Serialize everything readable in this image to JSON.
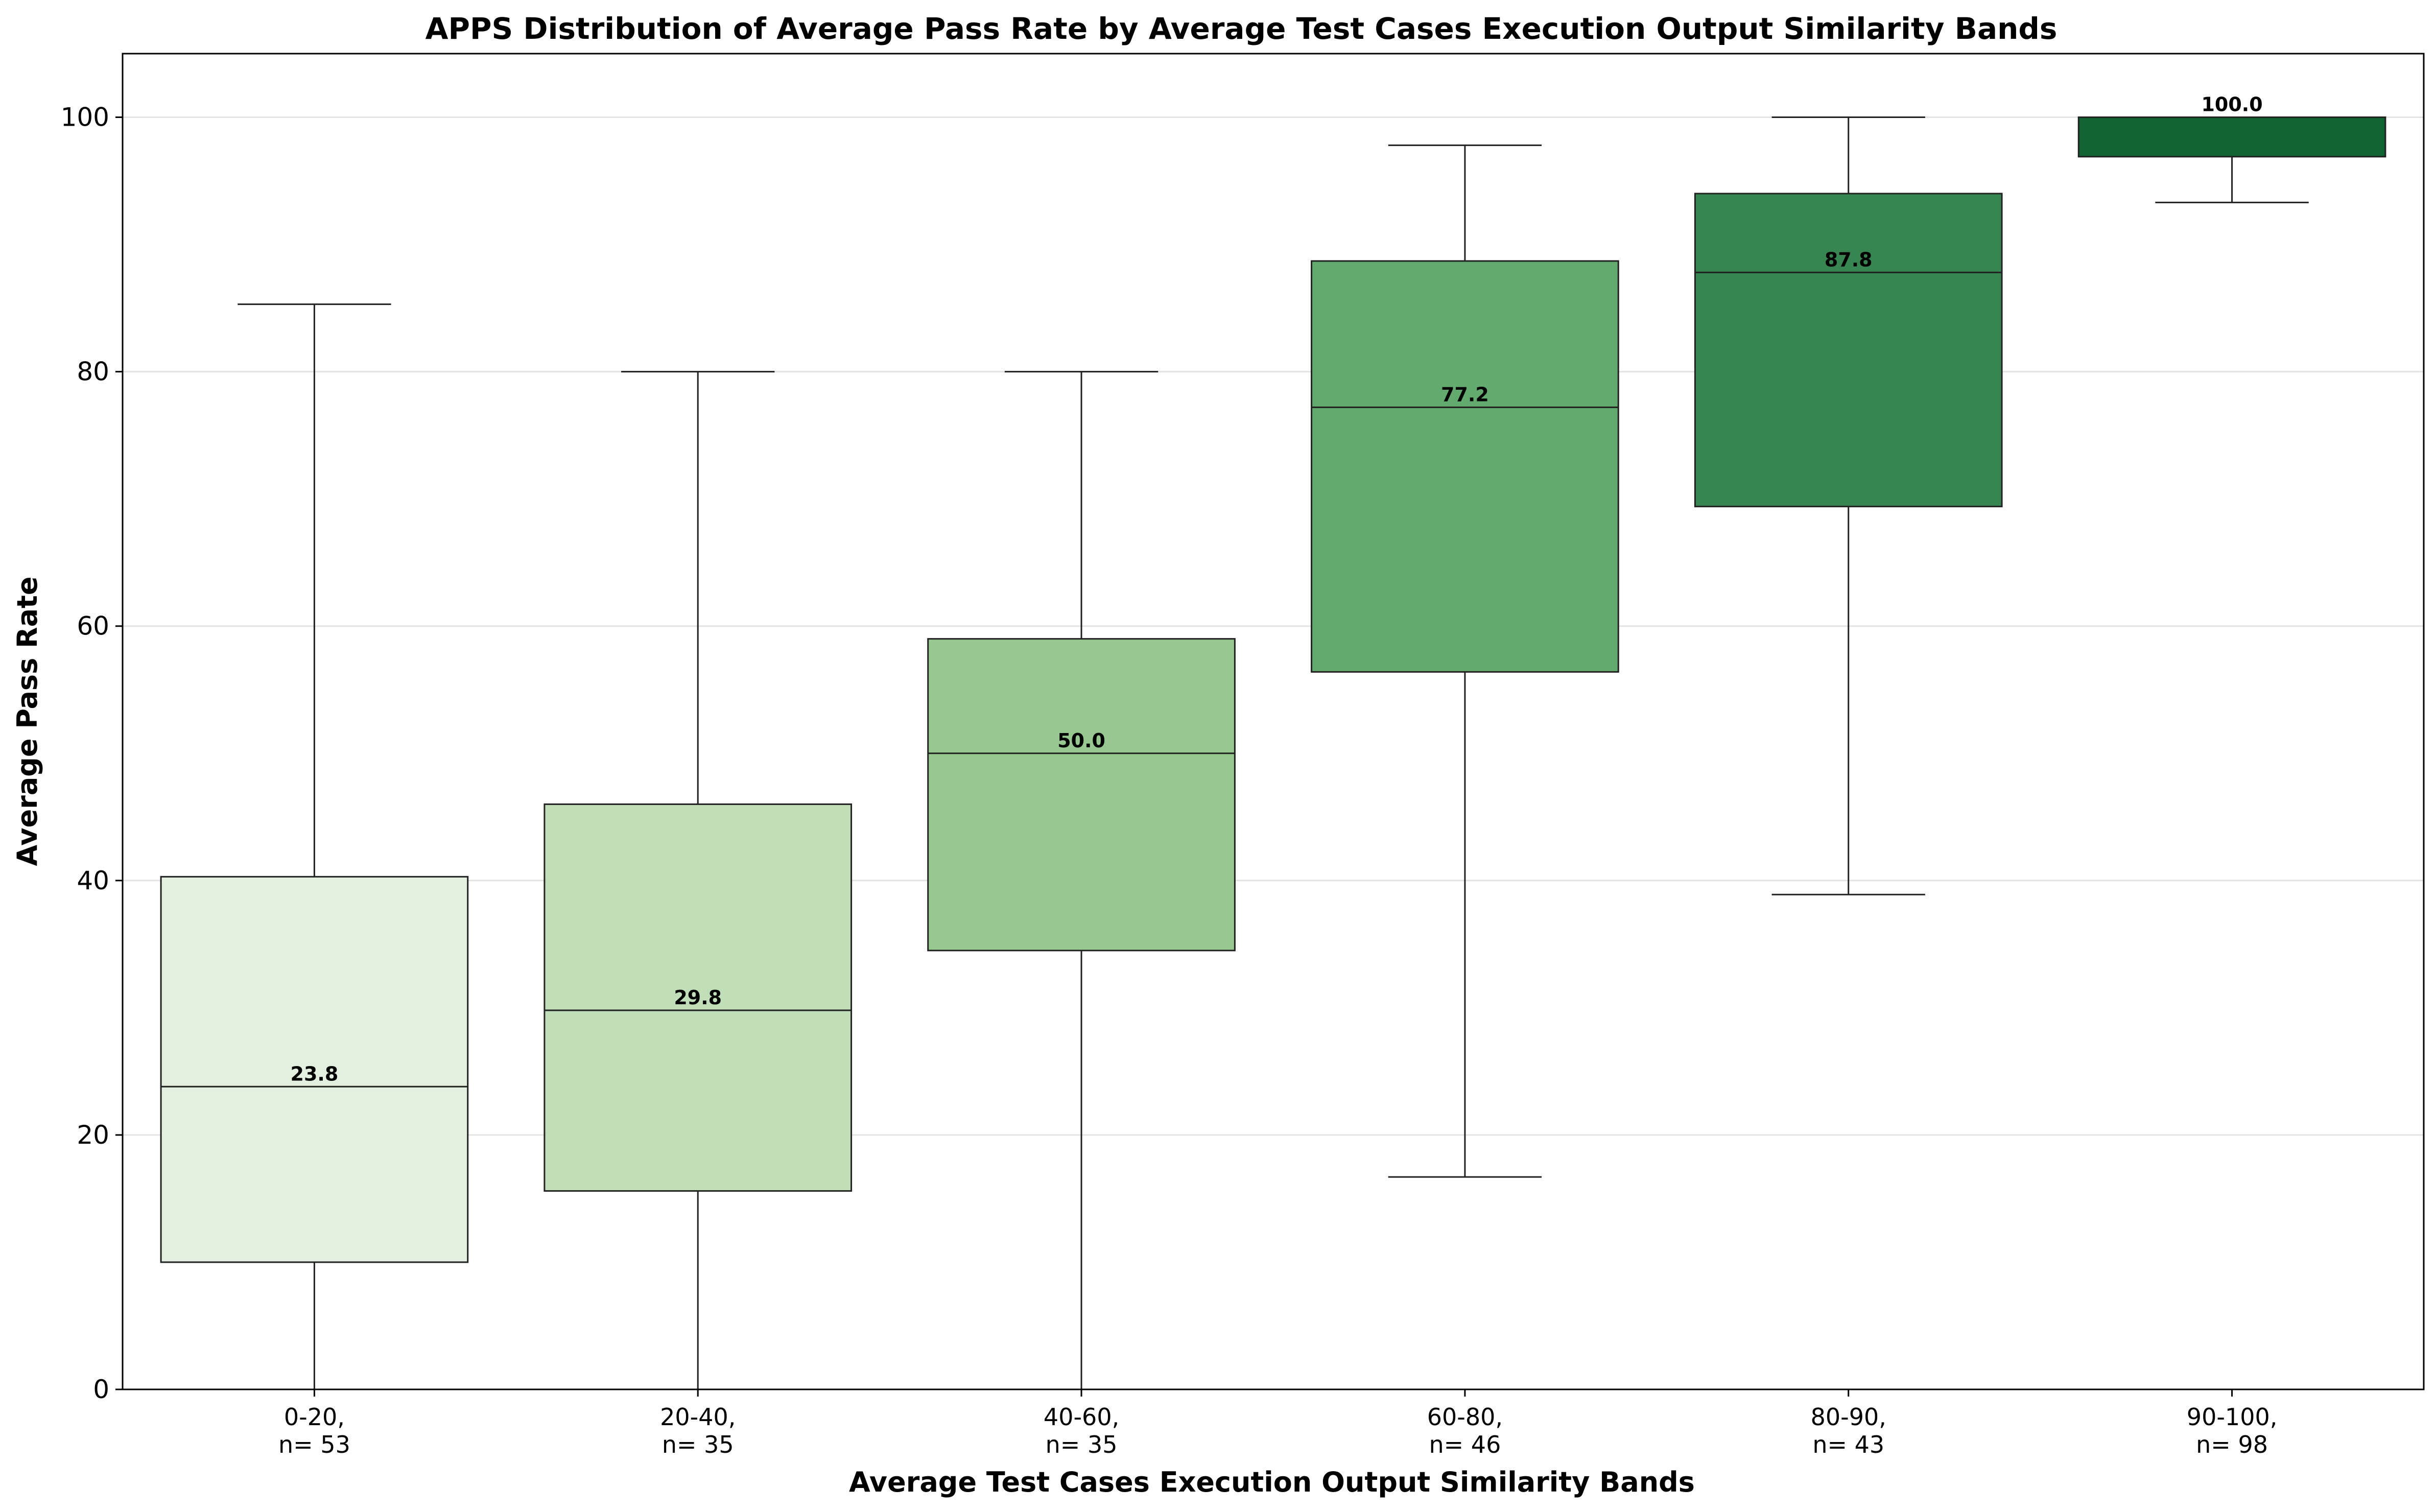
{
  "chart_data": {
    "type": "box",
    "title": "APPS Distribution of Average Pass Rate by Average Test Cases Execution Output Similarity Bands",
    "xlabel": "Average Test Cases Execution Output Similarity Bands",
    "ylabel": "Average Pass Rate",
    "ylim": [
      0,
      105
    ],
    "yticks": [
      0,
      20,
      40,
      60,
      80,
      100
    ],
    "grid": "horizontal",
    "categories": [
      {
        "band": "0-20,",
        "count": "n= 53",
        "whisker_low": 0,
        "q1": 10.0,
        "median": 23.8,
        "q3": 40.3,
        "whisker_high": 85.3,
        "median_label": "23.8",
        "color": "#e3efdf"
      },
      {
        "band": "20-40,",
        "count": "n= 35",
        "whisker_low": 0,
        "q1": 15.6,
        "median": 29.8,
        "q3": 46.0,
        "whisker_high": 80.0,
        "median_label": "29.8",
        "color": "#c0dfb9"
      },
      {
        "band": "40-60,",
        "count": "n= 35",
        "whisker_low": 0,
        "q1": 34.5,
        "median": 50.0,
        "q3": 59.0,
        "whisker_high": 80.0,
        "median_label": "50.0",
        "color": "#96c88f"
      },
      {
        "band": "60-80,",
        "count": "n= 46",
        "whisker_low": 16.7,
        "q1": 56.4,
        "median": 77.2,
        "q3": 88.7,
        "whisker_high": 97.8,
        "median_label": "77.2",
        "color": "#62aa6e"
      },
      {
        "band": "80-90,",
        "count": "n= 43",
        "whisker_low": 38.9,
        "q1": 69.4,
        "median": 87.8,
        "q3": 94.0,
        "whisker_high": 100.0,
        "median_label": "87.8",
        "color": "#378652"
      },
      {
        "band": "90-100,",
        "count": "n= 98",
        "whisker_low": 93.3,
        "q1": 96.9,
        "median": 100.0,
        "q3": 100.0,
        "whisker_high": 100.0,
        "median_label": "100.0",
        "color": "#10642f"
      }
    ]
  }
}
